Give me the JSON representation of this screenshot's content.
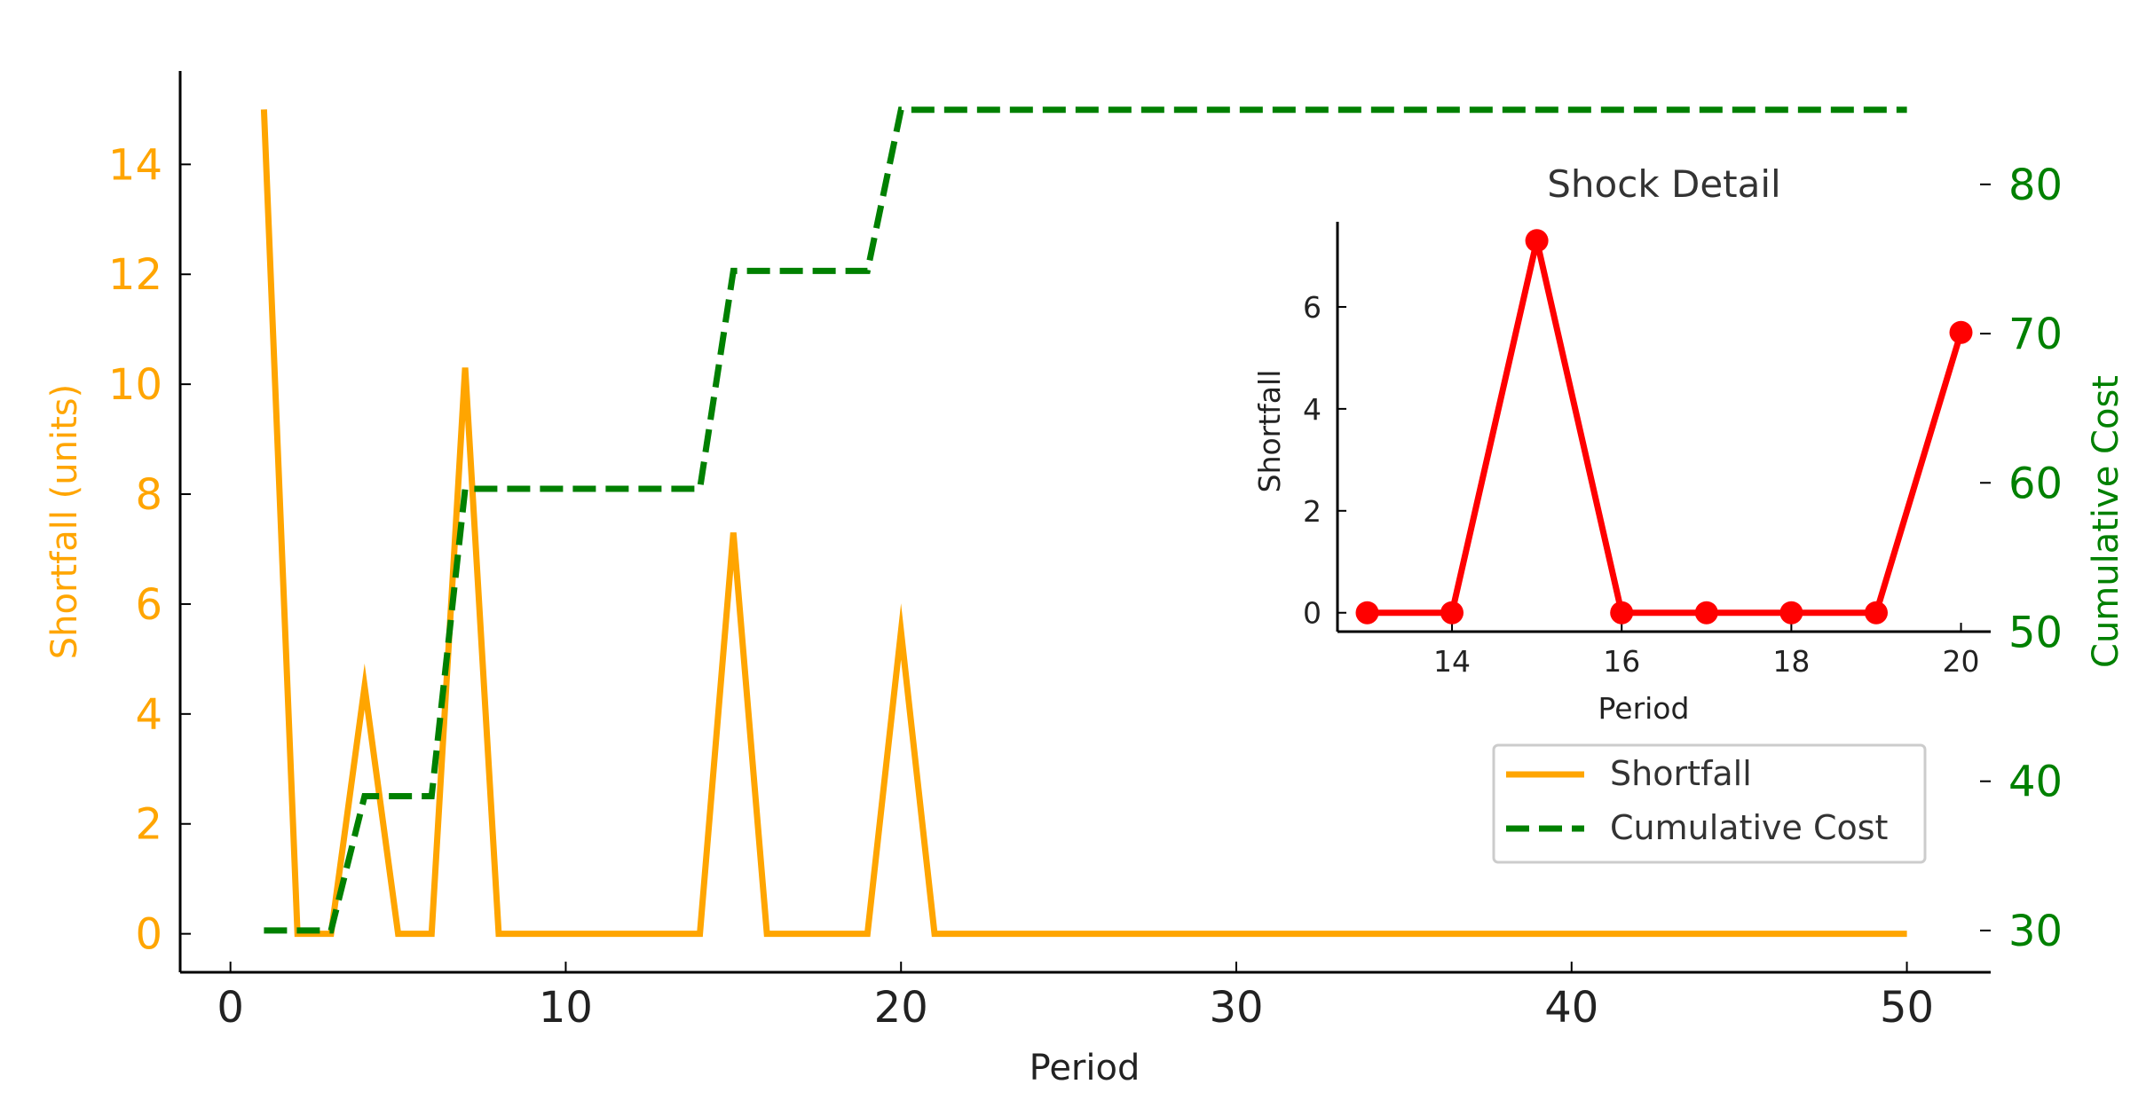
{
  "colors": {
    "shortfall": "#FFA500",
    "cumulative_cost": "#008000",
    "inset_line": "#FF0000",
    "axis": "#000000",
    "text": "#333333"
  },
  "chart_data": [
    {
      "type": "line",
      "title": "",
      "xlabel": "Period",
      "ylabel": "Shortfall (units)",
      "ylabel_right": "Cumulative Cost",
      "xlim": [
        -1.5,
        52.5
      ],
      "ylim": [
        -0.7,
        15.7
      ],
      "ylim_right": [
        27.2,
        87.6
      ],
      "xticks": [
        0,
        10,
        20,
        30,
        40,
        50
      ],
      "yticks": [
        0,
        2,
        4,
        6,
        8,
        10,
        12,
        14
      ],
      "yticks_right": [
        30,
        40,
        50,
        60,
        70,
        80
      ],
      "x": [
        1,
        2,
        3,
        4,
        5,
        6,
        7,
        8,
        9,
        10,
        11,
        12,
        13,
        14,
        15,
        16,
        17,
        18,
        19,
        20,
        21,
        22,
        23,
        24,
        25,
        26,
        27,
        28,
        29,
        30,
        31,
        32,
        33,
        34,
        35,
        36,
        37,
        38,
        39,
        40,
        41,
        42,
        43,
        44,
        45,
        46,
        47,
        48,
        49,
        50
      ],
      "series": [
        {
          "name": "Shortfall",
          "axis": "left",
          "style": "solid",
          "values": [
            15,
            0,
            0,
            4.5,
            0,
            0,
            10.3,
            0,
            0,
            0,
            0,
            0,
            0,
            0,
            7.3,
            0,
            0,
            0,
            0,
            5.5,
            0,
            0,
            0,
            0,
            0,
            0,
            0,
            0,
            0,
            0,
            0,
            0,
            0,
            0,
            0,
            0,
            0,
            0,
            0,
            0,
            0,
            0,
            0,
            0,
            0,
            0,
            0,
            0,
            0,
            0
          ]
        },
        {
          "name": "Cumulative Cost",
          "axis": "right",
          "style": "dashed",
          "values": [
            30,
            30,
            30,
            39,
            39,
            39,
            59.6,
            59.6,
            59.6,
            59.6,
            59.6,
            59.6,
            59.6,
            59.6,
            74.2,
            74.2,
            74.2,
            74.2,
            74.2,
            85,
            85,
            85,
            85,
            85,
            85,
            85,
            85,
            85,
            85,
            85,
            85,
            85,
            85,
            85,
            85,
            85,
            85,
            85,
            85,
            85,
            85,
            85,
            85,
            85,
            85,
            85,
            85,
            85,
            85,
            85
          ]
        }
      ],
      "legend": {
        "position": "lower-right",
        "entries": [
          "Shortfall",
          "Cumulative Cost"
        ]
      }
    },
    {
      "type": "line",
      "title": "Shock Detail",
      "xlabel": "Period",
      "ylabel": "Shortfall",
      "xlim": [
        12.65,
        20.35
      ],
      "ylim": [
        -0.37,
        7.67
      ],
      "xticks": [
        14,
        16,
        18,
        20
      ],
      "yticks": [
        0,
        2,
        4,
        6
      ],
      "x": [
        13,
        14,
        15,
        16,
        17,
        18,
        19,
        20
      ],
      "series": [
        {
          "name": "Shortfall",
          "style": "solid-markers",
          "values": [
            0,
            0,
            7.3,
            0,
            0,
            0,
            0,
            5.5
          ]
        }
      ]
    }
  ]
}
